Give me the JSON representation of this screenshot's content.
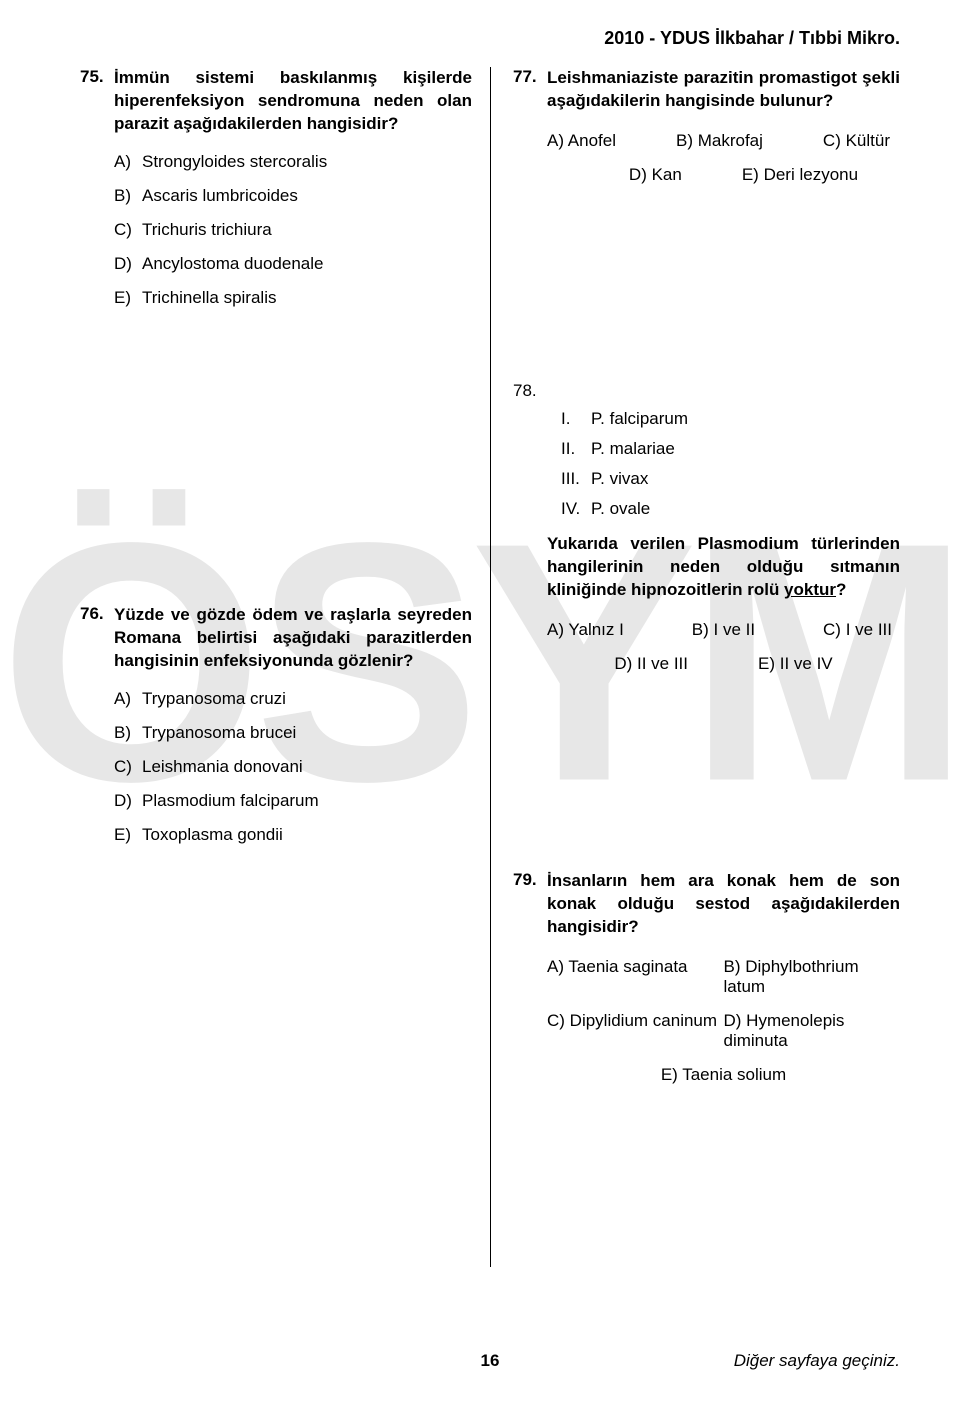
{
  "header": "2010 - YDUS İlkbahar / Tıbbi Mikro.",
  "watermark": "ÖSYM",
  "footer": {
    "page": "16",
    "next": "Diğer sayfaya geçiniz."
  },
  "q75": {
    "num": "75.",
    "text": "İmmün sistemi baskılanmış kişilerde hiperenfeksiyon sendromuna neden olan parazit aşağıdakilerden hangisidir?",
    "opts": [
      {
        "l": "A)",
        "t": "Strongyloides stercoralis"
      },
      {
        "l": "B)",
        "t": "Ascaris lumbricoides"
      },
      {
        "l": "C)",
        "t": "Trichuris trichiura"
      },
      {
        "l": "D)",
        "t": "Ancylostoma duodenale"
      },
      {
        "l": "E)",
        "t": "Trichinella spiralis"
      }
    ]
  },
  "q76": {
    "num": "76.",
    "text": "Yüzde ve gözde ödem ve raşlarla seyreden Romana belirtisi aşağıdaki parazitlerden hangisinin enfeksiyonunda gözlenir?",
    "opts": [
      {
        "l": "A)",
        "t": "Trypanosoma cruzi"
      },
      {
        "l": "B)",
        "t": "Trypanosoma brucei"
      },
      {
        "l": "C)",
        "t": "Leishmania donovani"
      },
      {
        "l": "D)",
        "t": "Plasmodium falciparum"
      },
      {
        "l": "E)",
        "t": "Toxoplasma gondii"
      }
    ]
  },
  "q77": {
    "num": "77.",
    "text": "Leishmaniaziste parazitin promastigot şekli aşağıdakilerin hangisinde bulunur?",
    "row1": [
      {
        "t": "A) Anofel"
      },
      {
        "t": "B) Makrofaj"
      },
      {
        "t": "C) Kültür"
      }
    ],
    "row2": [
      {
        "t": "D) Kan"
      },
      {
        "t": "E) Deri lezyonu"
      }
    ]
  },
  "q78": {
    "num": "78.",
    "roman": [
      {
        "n": "I.",
        "t": "P. falciparum"
      },
      {
        "n": "II.",
        "t": "P. malariae"
      },
      {
        "n": "III.",
        "t": "P. vivax"
      },
      {
        "n": "IV.",
        "t": "P. ovale"
      }
    ],
    "stem_before_u": "Yukarıda verilen Plasmodium türlerinden hangilerinin neden olduğu sıtmanın kliniğinde hipnozoitlerin rolü ",
    "stem_u": "yoktur",
    "stem_after_u": "?",
    "row1": [
      {
        "t": "A) Yalnız I"
      },
      {
        "t": "B) I ve II"
      },
      {
        "t": "C) I ve III"
      }
    ],
    "row2": [
      {
        "t": "D) II ve III"
      },
      {
        "t": "E) II ve IV"
      }
    ]
  },
  "q79": {
    "num": "79.",
    "text": "İnsanların hem ara konak hem de son konak olduğu sestod aşağıdakilerden hangisidir?",
    "r1a": "A) Taenia saginata",
    "r1b": "B) Diphylbothrium latum",
    "r2a": "C) Dipylidium caninum",
    "r2b": "D) Hymenolepis diminuta",
    "r3": "E) Taenia solium"
  }
}
